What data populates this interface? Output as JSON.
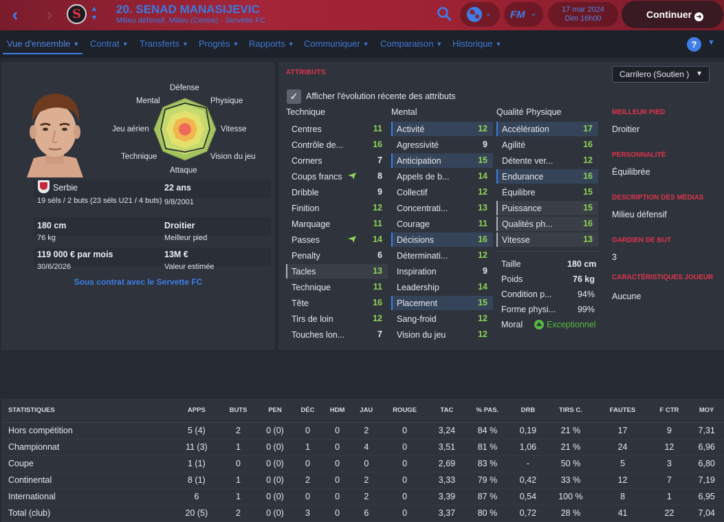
{
  "header": {
    "player_name": "20. SENAD MANASIJEVIC",
    "player_subtitle": "Milieu défensif, Milieu (Centre) - Servette FC",
    "date_line1": "17 mar 2024",
    "date_line2": "Dim 16h00",
    "continue_label": "Continuer",
    "fm_logo": "FM",
    "colors": {
      "header_red": "#a42538",
      "accent_blue": "#3d7ee8",
      "continue_bg": "#3a1a22"
    }
  },
  "tabs": [
    {
      "label": "Vue d'ensemble",
      "active": true
    },
    {
      "label": "Contrat"
    },
    {
      "label": "Transferts"
    },
    {
      "label": "Progrès"
    },
    {
      "label": "Rapports"
    },
    {
      "label": "Communiquer"
    },
    {
      "label": "Comparaison"
    },
    {
      "label": "Historique"
    }
  ],
  "overview": {
    "radar_labels": {
      "defense": "Défense",
      "physique": "Physique",
      "vitesse": "Vitesse",
      "vision": "Vision du jeu",
      "attaque": "Attaque",
      "technique": "Technique",
      "jeu_aerien": "Jeu aérien",
      "mental": "Mental"
    },
    "nation": "Serbie",
    "caps": "19 séls / 2 buts (23 séls U21 / 4 buts)",
    "age": "22 ans",
    "dob": "9/8/2001",
    "height": "180 cm",
    "weight": "76 kg",
    "foot": "Droitier",
    "foot_label": "Meilleur pied",
    "wage": "119 000 € par mois",
    "contract_end": "30/6/2026",
    "value": "13M €",
    "value_label": "Valeur estimée",
    "contract_text": "Sous contrat avec le Servette FC"
  },
  "attributes": {
    "title": "ATTRIBUTS",
    "role": "Carrilero (Soutien )",
    "show_evolution_label": "Afficher l'évolution récente des attributs",
    "technical_title": "Technique",
    "technical": [
      {
        "name": "Centres",
        "value": "11"
      },
      {
        "name": "Contrôle de...",
        "value": "16"
      },
      {
        "name": "Corners",
        "value": "7"
      },
      {
        "name": "Coups francs",
        "value": "8",
        "trend": "up"
      },
      {
        "name": "Dribble",
        "value": "9"
      },
      {
        "name": "Finition",
        "value": "12"
      },
      {
        "name": "Marquage",
        "value": "11"
      },
      {
        "name": "Passes",
        "value": "14",
        "trend": "up"
      },
      {
        "name": "Penalty",
        "value": "6"
      },
      {
        "name": "Tacles",
        "value": "13",
        "highlight": "grey"
      },
      {
        "name": "Technique",
        "value": "11"
      },
      {
        "name": "Tête",
        "value": "16"
      },
      {
        "name": "Tirs de loin",
        "value": "12"
      },
      {
        "name": "Touches lon...",
        "value": "7"
      }
    ],
    "mental_title": "Mental",
    "mental": [
      {
        "name": "Activité",
        "value": "12",
        "highlight": "blue"
      },
      {
        "name": "Agressivité",
        "value": "9"
      },
      {
        "name": "Anticipation",
        "value": "15",
        "highlight": "blue"
      },
      {
        "name": "Appels de b...",
        "value": "14"
      },
      {
        "name": "Collectif",
        "value": "12"
      },
      {
        "name": "Concentrati...",
        "value": "13"
      },
      {
        "name": "Courage",
        "value": "11"
      },
      {
        "name": "Décisions",
        "value": "16",
        "highlight": "blue"
      },
      {
        "name": "Déterminati...",
        "value": "12"
      },
      {
        "name": "Inspiration",
        "value": "9"
      },
      {
        "name": "Leadership",
        "value": "14"
      },
      {
        "name": "Placement",
        "value": "15",
        "highlight": "blue"
      },
      {
        "name": "Sang-froid",
        "value": "12"
      },
      {
        "name": "Vision du jeu",
        "value": "12"
      }
    ],
    "physical_title": "Qualité Physique",
    "physical": [
      {
        "name": "Accélération",
        "value": "17",
        "highlight": "blue"
      },
      {
        "name": "Agilité",
        "value": "16"
      },
      {
        "name": "Détente ver...",
        "value": "12"
      },
      {
        "name": "Endurance",
        "value": "16",
        "highlight": "blue"
      },
      {
        "name": "Équilibre",
        "value": "15"
      },
      {
        "name": "Puissance",
        "value": "15",
        "highlight": "grey"
      },
      {
        "name": "Qualités ph...",
        "value": "16",
        "highlight": "grey"
      },
      {
        "name": "Vitesse",
        "value": "13",
        "highlight": "grey"
      }
    ],
    "extra": [
      {
        "label": "Taille",
        "value": "180 cm"
      },
      {
        "label": "Poids",
        "value": "76 kg"
      },
      {
        "label": "Condition p...",
        "value": "94%"
      },
      {
        "label": "Forme physi...",
        "value": "99%"
      }
    ],
    "morale_label": "Moral",
    "morale_value": "Exceptionnel",
    "side": [
      {
        "heading": "MEILLEUR PIED",
        "value": "Droitier"
      },
      {
        "heading": "PERSONNALITÉ",
        "value": "Équilibrée"
      },
      {
        "heading": "DESCRIPTION DES MÉDIAS",
        "value": "Milieu défensif"
      },
      {
        "heading": "GARDIEN DE BUT",
        "value": "3"
      },
      {
        "heading": "CARACTÉRISTIQUES JOUEUR",
        "value": "Aucune"
      }
    ]
  },
  "stats": {
    "headers": [
      "STATISTIQUES",
      "APPS",
      "BUTS",
      "PEN",
      "DÉC",
      "HDM",
      "JAU",
      "ROUGE",
      "TAC",
      "% PAS.",
      "DRB",
      "TIRS C.",
      "FAUTES",
      "F CTR",
      "MOY"
    ],
    "rows": [
      [
        "Hors compétition",
        "5 (4)",
        "2",
        "0 (0)",
        "0",
        "0",
        "2",
        "0",
        "3,24",
        "84 %",
        "0,19",
        "21 %",
        "17",
        "9",
        "7,31"
      ],
      [
        "Championnat",
        "11 (3)",
        "1",
        "0 (0)",
        "1",
        "0",
        "4",
        "0",
        "3,51",
        "81 %",
        "1,06",
        "21 %",
        "24",
        "12",
        "6,96"
      ],
      [
        "Coupe",
        "1 (1)",
        "0",
        "0 (0)",
        "0",
        "0",
        "0",
        "0",
        "2,69",
        "83 %",
        "-",
        "50 %",
        "5",
        "3",
        "6,80"
      ],
      [
        "Continental",
        "8 (1)",
        "1",
        "0 (0)",
        "2",
        "0",
        "2",
        "0",
        "3,33",
        "79 %",
        "0,42",
        "33 %",
        "12",
        "7",
        "7,19"
      ],
      [
        "International",
        "6",
        "1",
        "0 (0)",
        "0",
        "0",
        "2",
        "0",
        "3,39",
        "87 %",
        "0,54",
        "100 %",
        "8",
        "1",
        "6,95"
      ],
      [
        "Total (club)",
        "20 (5)",
        "2",
        "0 (0)",
        "3",
        "0",
        "6",
        "0",
        "3,37",
        "80 %",
        "0,72",
        "28 %",
        "41",
        "22",
        "7,04"
      ]
    ]
  }
}
